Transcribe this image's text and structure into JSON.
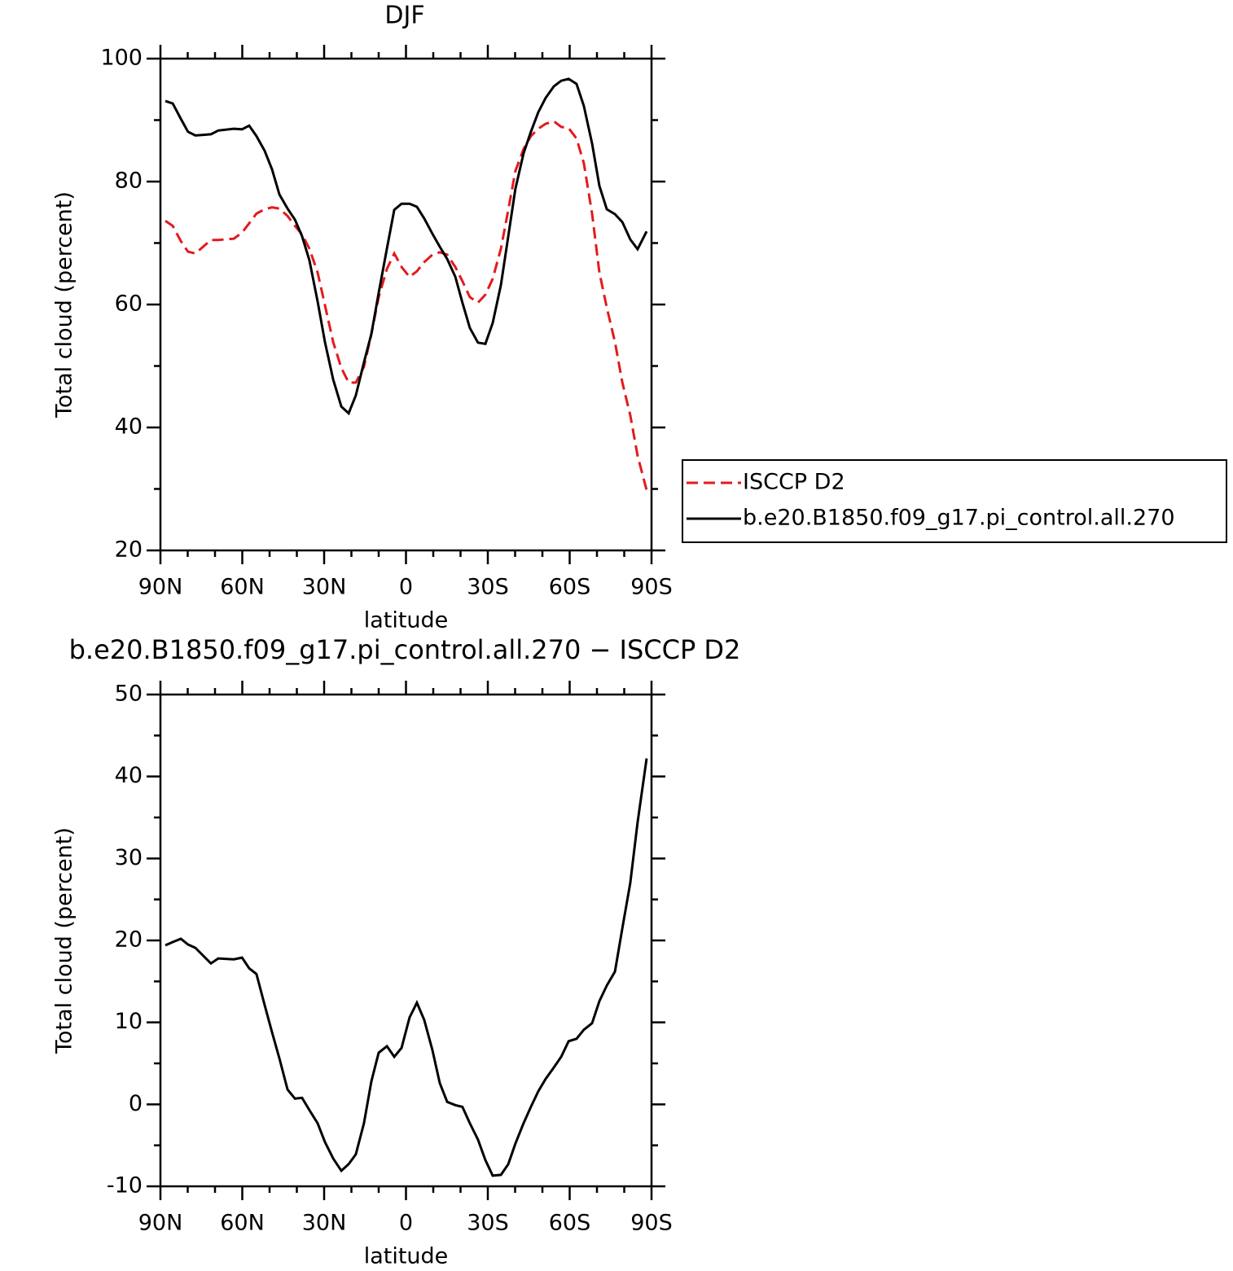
{
  "chart_data": [
    {
      "type": "line",
      "title": "DJF",
      "xlabel": "latitude",
      "ylabel": "Total cloud (percent)",
      "x": [
        88.2,
        85.5,
        82.5,
        79.9,
        77.2,
        71.5,
        68.8,
        63.1,
        60.1,
        57.5,
        54.8,
        51.8,
        49.1,
        46.4,
        43.4,
        40.7,
        38.1,
        35.4,
        32.4,
        29.7,
        26.7,
        23.7,
        21.0,
        18.4,
        15.4,
        12.7,
        10.0,
        7.0,
        4.3,
        1.6,
        -1.3,
        -4.0,
        -6.7,
        -9.7,
        -12.4,
        -15.1,
        -18.1,
        -20.7,
        -23.4,
        -26.4,
        -29.1,
        -31.8,
        -34.8,
        -37.5,
        -40.1,
        -43.1,
        -45.8,
        -48.5,
        -51.2,
        -54.2,
        -56.9,
        -59.6,
        -62.5,
        -65.2,
        -68.2,
        -70.9,
        -73.6,
        -76.6,
        -79.3,
        -82.2,
        -84.9,
        -88.2
      ],
      "series": [
        {
          "name": "ISCCP D2",
          "color": "#e31a1c",
          "dashed": true,
          "values": [
            73.6,
            72.8,
            70.3,
            68.6,
            68.3,
            70.5,
            70.5,
            70.7,
            71.7,
            73.2,
            74.8,
            75.5,
            75.8,
            75.6,
            74.4,
            72.8,
            71.4,
            69.1,
            65.2,
            59.9,
            53.9,
            49.7,
            47.3,
            47.3,
            49.9,
            55.2,
            61.2,
            65.8,
            68.3,
            66.1,
            64.5,
            65.4,
            66.9,
            68.1,
            68.5,
            68.1,
            66.1,
            63.8,
            61.2,
            60.3,
            61.6,
            64.2,
            69.1,
            75.4,
            81.7,
            85.3,
            87.4,
            88.6,
            89.4,
            89.8,
            88.9,
            88.7,
            87.0,
            83.0,
            74.8,
            65.2,
            59.5,
            53.9,
            47.3,
            42.0,
            35.4,
            29.8
          ]
        },
        {
          "name": "b.e20.B1850.f09_g17.pi_control.all.270",
          "color": "#000000",
          "dashed": false,
          "values": [
            93.1,
            92.7,
            90.2,
            88.1,
            87.5,
            87.7,
            88.3,
            88.6,
            88.5,
            89.1,
            87.4,
            85.0,
            82.0,
            77.9,
            75.6,
            73.8,
            71.1,
            67.2,
            60.5,
            53.9,
            47.8,
            43.4,
            42.3,
            45.2,
            50.6,
            55.2,
            61.9,
            69.1,
            75.4,
            76.4,
            76.4,
            75.9,
            74.0,
            71.5,
            69.4,
            67.4,
            64.5,
            60.3,
            56.2,
            53.8,
            53.6,
            57.0,
            63.2,
            71.1,
            78.8,
            84.6,
            88.1,
            91.3,
            93.6,
            95.5,
            96.4,
            96.7,
            95.9,
            92.3,
            86.2,
            79.3,
            75.5,
            74.7,
            73.4,
            70.6,
            69.0,
            71.9
          ]
        }
      ],
      "xlim": [
        90,
        -90
      ],
      "xticks": [
        {
          "value": 90,
          "label": "90N"
        },
        {
          "value": 60,
          "label": "60N"
        },
        {
          "value": 30,
          "label": "30N"
        },
        0,
        {
          "value": -30,
          "label": "30S"
        },
        {
          "value": -60,
          "label": "60S"
        },
        {
          "value": -90,
          "label": "90S"
        }
      ],
      "xminorticks": [
        80,
        70,
        50,
        40,
        20,
        10,
        -10,
        -20,
        -40,
        -50,
        -70,
        -80
      ],
      "ylim": [
        20,
        100
      ],
      "yticks": [
        20,
        40,
        60,
        80,
        100
      ],
      "yminorticks": [
        30,
        50,
        70,
        90
      ],
      "grid": false,
      "legend": "right"
    },
    {
      "type": "line",
      "title": "b.e20.B1850.f09_g17.pi_control.all.270 − ISCCP D2",
      "xlabel": "latitude",
      "ylabel": "Total cloud (percent)",
      "x": [
        88.2,
        85.5,
        82.5,
        79.9,
        77.2,
        71.5,
        68.8,
        63.1,
        60.1,
        57.5,
        54.8,
        51.8,
        49.1,
        46.4,
        43.4,
        40.7,
        38.1,
        35.4,
        32.4,
        29.7,
        26.7,
        23.7,
        21.0,
        18.4,
        15.4,
        12.7,
        10.0,
        7.0,
        4.3,
        1.6,
        -1.3,
        -4.0,
        -6.7,
        -9.7,
        -12.4,
        -15.1,
        -18.1,
        -20.7,
        -23.4,
        -26.4,
        -29.1,
        -31.8,
        -34.8,
        -37.5,
        -40.1,
        -43.1,
        -45.8,
        -48.5,
        -51.2,
        -54.2,
        -56.9,
        -59.6,
        -62.5,
        -65.2,
        -68.2,
        -70.9,
        -73.6,
        -76.6,
        -79.3,
        -82.2,
        -84.9,
        -88.2
      ],
      "series": [
        {
          "color": "#000000",
          "dashed": false,
          "values": [
            19.4,
            19.8,
            20.2,
            19.5,
            19.1,
            17.2,
            17.8,
            17.7,
            17.9,
            16.6,
            15.9,
            12.1,
            8.8,
            5.6,
            1.8,
            0.7,
            0.8,
            -0.7,
            -2.3,
            -4.6,
            -6.6,
            -8.1,
            -7.3,
            -6.1,
            -2.3,
            2.8,
            6.3,
            7.1,
            5.8,
            6.9,
            10.6,
            12.4,
            10.3,
            6.6,
            2.6,
            0.3,
            -0.1,
            -0.3,
            -2.3,
            -4.3,
            -6.8,
            -8.7,
            -8.6,
            -7.3,
            -4.8,
            -2.3,
            -0.3,
            1.6,
            3.1,
            4.5,
            5.8,
            7.7,
            8.0,
            9.1,
            9.9,
            12.6,
            14.5,
            16.2,
            21.5,
            27.0,
            34.4,
            42.2
          ]
        }
      ],
      "xlim": [
        90,
        -90
      ],
      "xticks": [
        {
          "value": 90,
          "label": "90N"
        },
        {
          "value": 60,
          "label": "60N"
        },
        {
          "value": 30,
          "label": "30N"
        },
        0,
        {
          "value": -30,
          "label": "30S"
        },
        {
          "value": -60,
          "label": "60S"
        },
        {
          "value": -90,
          "label": "90S"
        }
      ],
      "xminorticks": [
        80,
        70,
        50,
        40,
        20,
        10,
        -10,
        -20,
        -40,
        -50,
        -70,
        -80
      ],
      "ylim": [
        -10,
        50
      ],
      "yticks": [
        -10,
        0,
        10,
        20,
        30,
        40,
        50
      ],
      "yminorticks": [
        -5,
        5,
        15,
        25,
        35,
        45
      ],
      "grid": false
    }
  ]
}
